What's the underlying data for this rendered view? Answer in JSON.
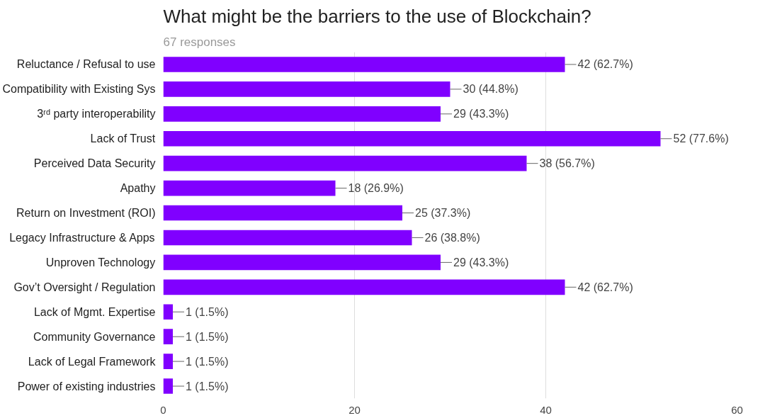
{
  "chart_data": {
    "type": "bar",
    "orientation": "horizontal",
    "title": "What might be the barriers to the use of Blockchain?",
    "subtitle": "67 responses",
    "categories": [
      "Reluctance / Refusal to use",
      "Compatibility with Existing Sys",
      "3ʳᵈ party interoperability",
      "Lack of Trust",
      "Perceived Data Security",
      "Apathy",
      "Return on Investment (ROI)",
      "Legacy Infrastructure & Apps",
      "Unproven Technology",
      "Gov’t Oversight / Regulation",
      "Lack of Mgmt. Expertise",
      "Community Governance",
      "Lack of Legal Framework",
      "Power of existing industries"
    ],
    "values": [
      42,
      30,
      29,
      52,
      38,
      18,
      25,
      26,
      29,
      42,
      1,
      1,
      1,
      1
    ],
    "value_labels": [
      "42 (62.7%)",
      "30 (44.8%)",
      "29 (43.3%)",
      "52 (77.6%)",
      "38 (56.7%)",
      "18 (26.9%)",
      "25 (37.3%)",
      "26 (38.8%)",
      "29 (43.3%)",
      "42 (62.7%)",
      "1 (1.5%)",
      "1 (1.5%)",
      "1 (1.5%)",
      "1 (1.5%)"
    ],
    "color": "#8000ff",
    "xlim": [
      0,
      60
    ],
    "xticks": [
      0,
      20,
      40,
      60
    ],
    "grid": "x"
  }
}
